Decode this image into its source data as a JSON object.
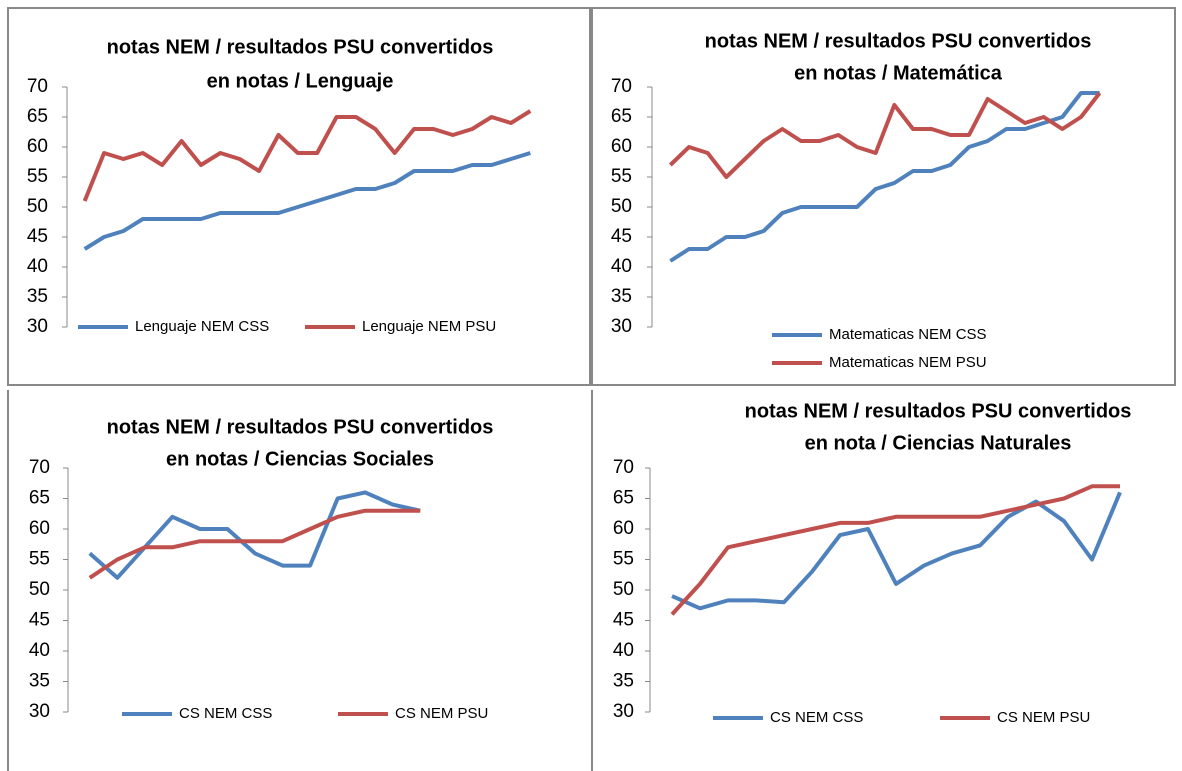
{
  "chart_data": [
    {
      "type": "line",
      "title": [
        "notas NEM / resultados PSU convertidos",
        "en notas  / Lenguaje"
      ],
      "categories": [
        null,
        null,
        null,
        null,
        null,
        null,
        null,
        null,
        null,
        null,
        null,
        null,
        null,
        null,
        null,
        null,
        null,
        null,
        null,
        null,
        null,
        null,
        null,
        null
      ],
      "series": [
        {
          "name": "Lenguaje NEM CSS",
          "color": "#4f81bd",
          "values": [
            43,
            45,
            46,
            48,
            48,
            48,
            48,
            49,
            49,
            49,
            49,
            50,
            51,
            52,
            53,
            53,
            54,
            56,
            56,
            56,
            57,
            57,
            58,
            59
          ]
        },
        {
          "name": "Lenguaje NEM PSU",
          "color": "#c0504d",
          "values": [
            51,
            59,
            58,
            59,
            57,
            61,
            57,
            59,
            58,
            56,
            62,
            59,
            59,
            65,
            65,
            63,
            59,
            63,
            63,
            62,
            63,
            65,
            64,
            66
          ]
        }
      ],
      "ylim": [
        30,
        70
      ],
      "yticks": [
        30,
        35,
        40,
        45,
        50,
        55,
        60,
        65,
        70
      ],
      "legend": "bottom"
    },
    {
      "type": "line",
      "title": [
        "notas NEM / resultados PSU convertidos",
        "en notas  / Matemática"
      ],
      "categories": [
        null,
        null,
        null,
        null,
        null,
        null,
        null,
        null,
        null,
        null,
        null,
        null,
        null,
        null,
        null,
        null,
        null,
        null,
        null,
        null,
        null,
        null,
        null,
        null
      ],
      "series": [
        {
          "name": "Matematicas NEM CSS",
          "color": "#4f81bd",
          "values": [
            41,
            43,
            43,
            45,
            45,
            46,
            49,
            50,
            50,
            50,
            50,
            53,
            54,
            56,
            56,
            57,
            60,
            61,
            63,
            63,
            64,
            65,
            69,
            69
          ]
        },
        {
          "name": "Matematicas NEM PSU",
          "color": "#c0504d",
          "values": [
            57,
            60,
            59,
            55,
            58,
            61,
            63,
            61,
            61,
            62,
            60,
            59,
            67,
            63,
            63,
            62,
            62,
            68,
            66,
            64,
            65,
            63,
            65,
            69
          ]
        }
      ],
      "ylim": [
        30,
        70
      ],
      "yticks": [
        30,
        35,
        40,
        45,
        50,
        55,
        60,
        65,
        70
      ],
      "legend": "bottom"
    },
    {
      "type": "line",
      "title": [
        "notas NEM / resultados PSU convertidos",
        "en notas / Ciencias Sociales"
      ],
      "categories": [
        null,
        null,
        null,
        null,
        null,
        null,
        null,
        null,
        null,
        null,
        null,
        null,
        null
      ],
      "series": [
        {
          "name": "CS NEM CSS",
          "color": "#4f81bd",
          "values": [
            56,
            52,
            57,
            62,
            60,
            60,
            56,
            54,
            54,
            65,
            66,
            64,
            63
          ]
        },
        {
          "name": "CS NEM PSU",
          "color": "#c0504d",
          "values": [
            52,
            55,
            57,
            57,
            58,
            58,
            58,
            58,
            60,
            62,
            63,
            63,
            63
          ]
        }
      ],
      "ylim": [
        30,
        70
      ],
      "yticks": [
        30,
        35,
        40,
        45,
        50,
        55,
        60,
        65,
        70
      ],
      "legend": "bottom"
    },
    {
      "type": "line",
      "title": [
        "notas NEM / resultados PSU convertidos",
        "en nota /  Ciencias Naturales"
      ],
      "categories": [
        null,
        null,
        null,
        null,
        null,
        null,
        null,
        null,
        null,
        null,
        null,
        null,
        null,
        null,
        null,
        null,
        null
      ],
      "series": [
        {
          "name": "CS NEM CSS",
          "color": "#4f81bd",
          "values": [
            49,
            47,
            48.3,
            48.3,
            48,
            53,
            59,
            60,
            51,
            54,
            56,
            57.3,
            62,
            64.5,
            61.3,
            55,
            66
          ]
        },
        {
          "name": "CS NEM PSU",
          "color": "#c0504d",
          "values": [
            46,
            51,
            57,
            58,
            59,
            60,
            61,
            61,
            62,
            62,
            62,
            62,
            63,
            64,
            65,
            67,
            67
          ]
        }
      ],
      "ylim": [
        30,
        70
      ],
      "yticks": [
        30,
        35,
        40,
        45,
        50,
        55,
        60,
        65,
        70
      ],
      "legend": "bottom"
    }
  ]
}
